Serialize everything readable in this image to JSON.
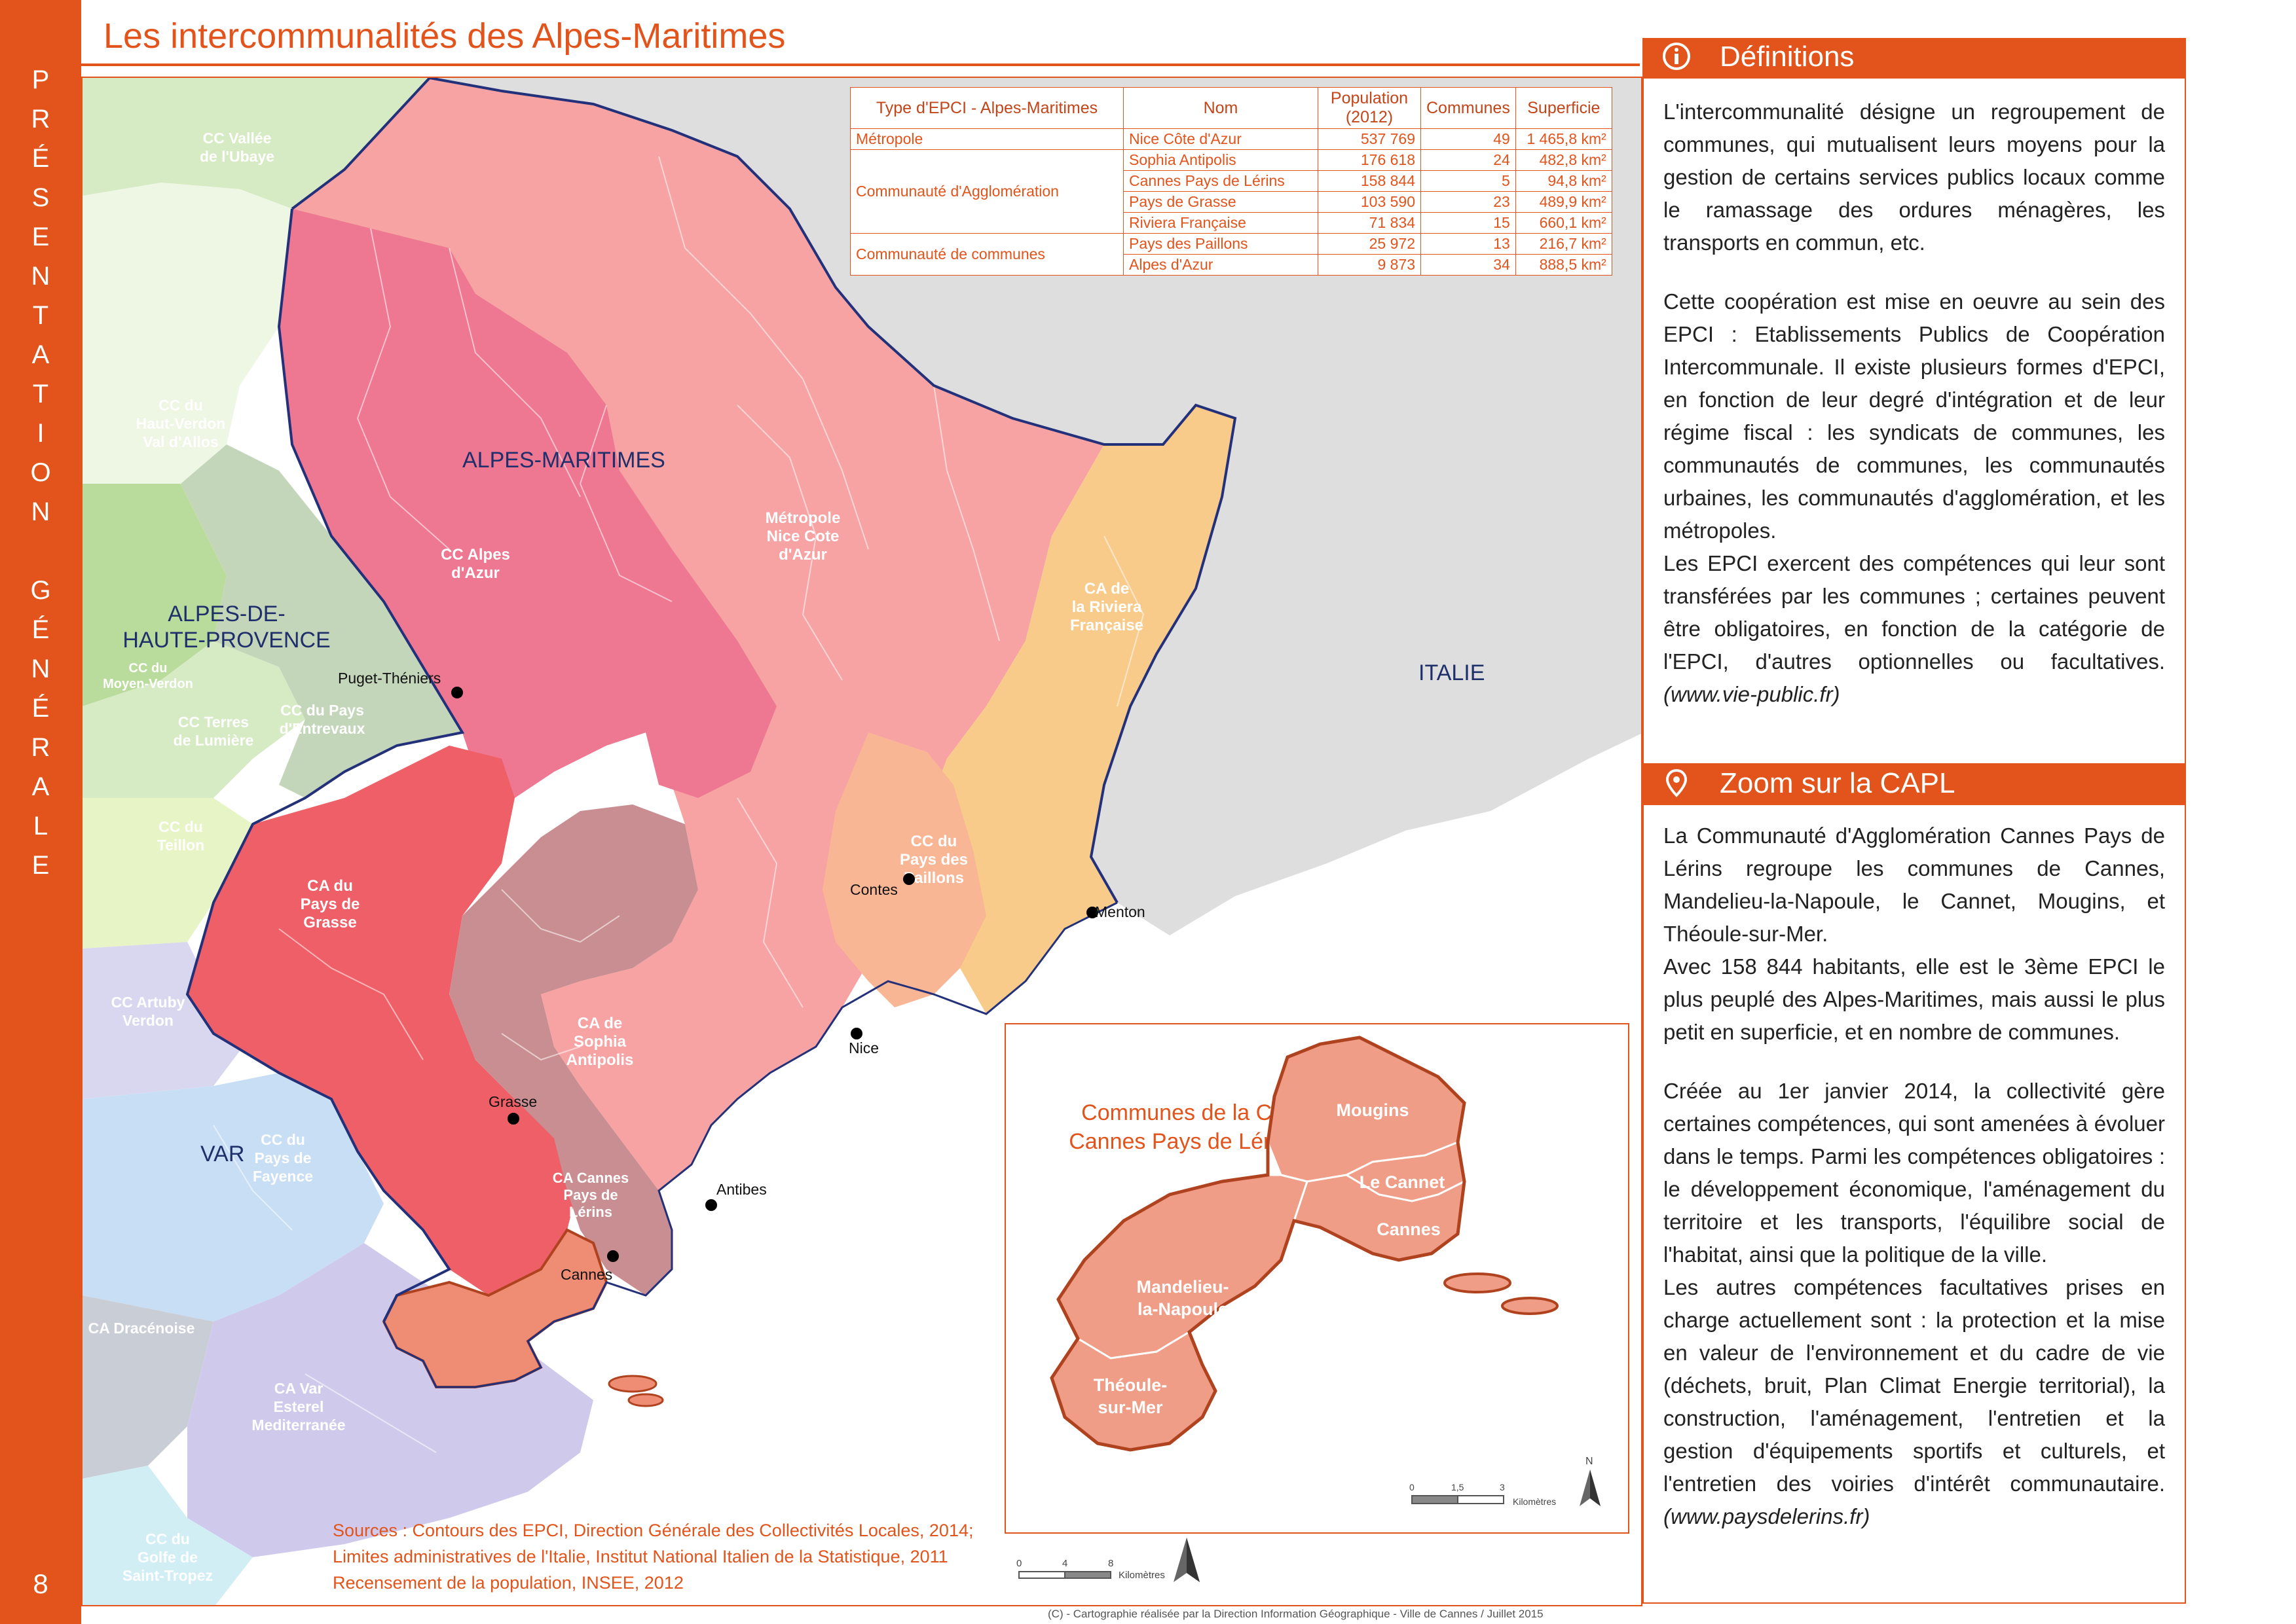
{
  "page": {
    "title": "Les intercommunalités des Alpes-Maritimes",
    "side_band": [
      "P",
      "R",
      "É",
      "S",
      "E",
      "N",
      "T",
      "A",
      "T",
      "I",
      "O",
      "N",
      "",
      "G",
      "É",
      "N",
      "É",
      "R",
      "A",
      "L",
      "E"
    ],
    "page_number": "8"
  },
  "table": {
    "headers": [
      "Type d'EPCI - Alpes-Maritimes",
      "Nom",
      "Population (2012)",
      "Communes",
      "Superficie"
    ],
    "groups": [
      {
        "type": "Métropole",
        "rows": [
          {
            "name": "Nice Côte d'Azur",
            "population": "537 769",
            "communes": "49",
            "area": "1 465,8 km²"
          }
        ]
      },
      {
        "type": "Communauté d'Agglomération",
        "rows": [
          {
            "name": "Sophia Antipolis",
            "population": "176 618",
            "communes": "24",
            "area": "482,8 km²"
          },
          {
            "name": "Cannes Pays de Lérins",
            "population": "158 844",
            "communes": "5",
            "area": "94,8 km²"
          },
          {
            "name": "Pays de Grasse",
            "population": "103 590",
            "communes": "23",
            "area": "489,9 km²"
          },
          {
            "name": "Riviera Française",
            "population": "71 834",
            "communes": "15",
            "area": "660,1 km²"
          }
        ]
      },
      {
        "type": "Communauté de communes",
        "rows": [
          {
            "name": "Pays des Paillons",
            "population": "25 972",
            "communes": "13",
            "area": "216,7 km²"
          },
          {
            "name": "Alpes d'Azur",
            "population": "9 873",
            "communes": "34",
            "area": "888,5 km²"
          }
        ]
      }
    ]
  },
  "map": {
    "region_labels": {
      "ubaye": [
        "CC Vallée",
        "de l'Ubaye"
      ],
      "haut_verdon": [
        "CC du",
        "Haut-Verdon",
        "Val d'Allos"
      ],
      "moyen_verdon": [
        "CC du",
        "Moyen-Verdon"
      ],
      "terres_lumiere": [
        "CC Terres",
        "de Lumière"
      ],
      "pays_entrevaux": [
        "CC du Pays",
        "d'Entrevaux"
      ],
      "teillon": [
        "CC du",
        "Teillon"
      ],
      "artuby": [
        "CC Artuby",
        "Verdon"
      ],
      "fayence": [
        "CC du",
        "Pays de",
        "Fayence"
      ],
      "dracenoise": [
        "CA Dracénoise"
      ],
      "esterel": [
        "CA Var",
        "Esterel",
        "Mediterranée"
      ],
      "golfe": [
        "CC du",
        "Golfe de",
        "Saint-Tropez"
      ],
      "alpes_azur": [
        "CC Alpes",
        "d'Azur"
      ],
      "metropole": [
        "Métropole",
        "Nice Cote",
        "d'Azur"
      ],
      "riviera": [
        "CA de",
        "la Riviera",
        "Française"
      ],
      "paillons": [
        "CC du",
        "Pays des",
        "Paillons"
      ],
      "grasse": [
        "CA du",
        "Pays de",
        "Grasse"
      ],
      "sophia": [
        "CA de",
        "Sophia",
        "Antipolis"
      ],
      "capl": [
        "CA Cannes",
        "Pays de",
        "Lérins"
      ]
    },
    "dept_labels": {
      "alpes_maritimes": "ALPES-MARITIMES",
      "ahp": [
        "ALPES-DE-",
        "HAUTE-PROVENCE"
      ],
      "var": "VAR",
      "italie": "ITALIE"
    },
    "cities": [
      "Puget-Théniers",
      "Contes",
      "Menton",
      "Nice",
      "Grasse",
      "Antibes",
      "Cannes"
    ],
    "scale_labels": [
      "0",
      "4",
      "8",
      "Kilomètres"
    ],
    "north_label": "N",
    "colors": {
      "metropole": "#f7a3a3",
      "alpes_azur": "#ee7792",
      "riviera": "#f9cb8a",
      "paillons": "#f9b694",
      "grasse": "#ee5f67",
      "sophia": "#c98e91",
      "capl": "#ef8c74",
      "neighbours_green": "#d6ebc3",
      "neighbours_blue": "#c8def5",
      "italy": "#dedede",
      "border": "#23307a"
    }
  },
  "inset": {
    "title": [
      "Communes de la CA",
      "Cannes Pays de Lérins"
    ],
    "communes": [
      "Mougins",
      "Le Cannet",
      "Cannes",
      "Mandelieu-",
      "la-Napoule",
      "Théoule-",
      "sur-Mer"
    ],
    "scale_labels": [
      "0",
      "1,5",
      "3",
      "Kilomètres"
    ],
    "north_label": "N"
  },
  "sources": [
    "Sources : Contours des EPCI, Direction Générale des Collectivités Locales, 2014;",
    "Limites administratives de l'Italie, Institut National Italien de la Statistique, 2011",
    "Recensement de la population, INSEE, 2012"
  ],
  "credit": "(C) - Cartographie réalisée par la Direction Information Géographique - Ville de Cannes / Juillet 2015",
  "definitions": {
    "header": "Définitions",
    "p1": "L'intercommunalité désigne un regroupement de communes, qui mutualisent leurs moyens pour la gestion de certains services publics locaux comme le ramassage des ordures ménagères, les transports en commun, etc.",
    "p2": "Cette coopération est mise en oeuvre au sein des EPCI : Etablissements Publics de Coopération Intercommunale. Il existe plusieurs formes d'EPCI, en fonction de leur degré d'intégration et de leur régime fiscal : les syndicats de communes, les communautés de communes, les communautés urbaines, les communautés d'agglomération, et les métropoles.",
    "p3": "Les EPCI exercent des compétences qui leur sont transférées par les communes ; certaines peuvent être obligatoires, en fonction de la catégorie de l'EPCI, d'autres optionnelles ou facultatives.",
    "p3_source": "(www.vie-public.fr)"
  },
  "zoom": {
    "header": "Zoom sur la CAPL",
    "p1": "La Communauté d'Agglomération Cannes Pays de Lérins regroupe les communes de Cannes, Mandelieu-la-Napoule, le Cannet, Mougins, et Théoule-sur-Mer.",
    "p2": "Avec 158 844 habitants, elle est le 3ème EPCI le plus peuplé des Alpes-Maritimes, mais aussi le plus petit en superficie, et en nombre de communes.",
    "p3": "Créée au 1er janvier 2014, la collectivité gère certaines compétences, qui sont amenées à évoluer dans le temps. Parmi les compétences obligatoires : le développement économique, l'aménagement du territoire et les transports, l'équilibre social de l'habitat, ainsi que la politique de la ville.",
    "p4": "Les autres compétences facultatives prises en charge actuellement sont : la protection et la mise en valeur de l'environnement et du cadre de vie (déchets, bruit, Plan Climat Energie territorial), la construction, l'aménagement, l'entretien et la gestion d'équipements sportifs et culturels, et l'entretien des voiries d'intérêt communautaire.",
    "p4_source": "(www.paysdelerins.fr)"
  }
}
